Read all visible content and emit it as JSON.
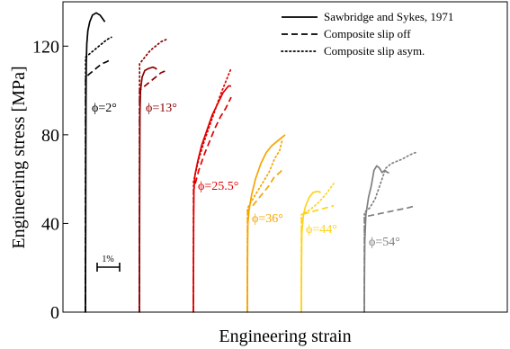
{
  "chart_data": {
    "type": "line",
    "title": "",
    "xlabel": "Engineering strain",
    "ylabel": "Engineering stress [MPa]",
    "ylim": [
      0,
      140
    ],
    "y_ticks": [
      0,
      40,
      80,
      120
    ],
    "x_tick_labels_shown": false,
    "x_units": "strain_percent_relative_to_each_curve_origin",
    "scale_bar_label": "1%",
    "grid": false,
    "legend_position": "top-right",
    "legend": [
      {
        "label": "Sawbridge and Sykes, 1971",
        "style": "solid"
      },
      {
        "label": "Composite slip off",
        "style": "dashed"
      },
      {
        "label": "Composite slip asym.",
        "style": "dotted"
      }
    ],
    "groups": [
      {
        "angle_label": "ϕ=2°",
        "color": "#000000",
        "experimental": [
          [
            0,
            0
          ],
          [
            0.05,
            40
          ],
          [
            0.07,
            70
          ],
          [
            0.1,
            95
          ],
          [
            0.15,
            112
          ],
          [
            0.25,
            121
          ],
          [
            0.45,
            127
          ],
          [
            0.8,
            131
          ],
          [
            1.3,
            134
          ],
          [
            2.0,
            135
          ],
          [
            2.7,
            134
          ],
          [
            3.3,
            132
          ],
          [
            3.6,
            131
          ]
        ],
        "slip_off": [
          [
            0,
            0
          ],
          [
            0.04,
            106
          ],
          [
            1.0,
            108
          ],
          [
            2.0,
            110
          ],
          [
            3.0,
            112
          ],
          [
            4.0,
            113
          ],
          [
            4.7,
            114
          ]
        ],
        "slip_asym": [
          [
            0,
            0
          ],
          [
            0.04,
            115
          ],
          [
            1.0,
            117
          ],
          [
            2.0,
            119
          ],
          [
            3.0,
            121
          ],
          [
            4.0,
            123
          ],
          [
            4.8,
            124
          ]
        ]
      },
      {
        "angle_label": "ϕ=13°",
        "color": "#8b0000",
        "experimental": [
          [
            0,
            0
          ],
          [
            0.05,
            60
          ],
          [
            0.1,
            90
          ],
          [
            0.2,
            100
          ],
          [
            0.5,
            106
          ],
          [
            1.0,
            109
          ],
          [
            1.8,
            110
          ],
          [
            2.5,
            110.5
          ],
          [
            3.0,
            110
          ],
          [
            3.2,
            109.5
          ]
        ],
        "slip_off": [
          [
            0,
            0
          ],
          [
            0.04,
            100
          ],
          [
            1.0,
            102
          ],
          [
            2.0,
            104
          ],
          [
            3.0,
            106
          ],
          [
            4.0,
            108
          ],
          [
            5.0,
            109
          ]
        ],
        "slip_asym": [
          [
            0,
            0
          ],
          [
            0.04,
            112
          ],
          [
            1.0,
            115
          ],
          [
            2.0,
            118
          ],
          [
            3.0,
            120
          ],
          [
            4.0,
            122
          ],
          [
            5.0,
            123
          ]
        ]
      },
      {
        "angle_label": "ϕ=25.5°",
        "color": "#e00000",
        "experimental": [
          [
            0,
            0
          ],
          [
            0.05,
            40
          ],
          [
            0.1,
            55
          ],
          [
            0.3,
            62
          ],
          [
            0.8,
            68
          ],
          [
            1.5,
            75
          ],
          [
            2.5,
            82
          ],
          [
            3.5,
            89
          ],
          [
            4.5,
            94
          ],
          [
            5.5,
            99
          ],
          [
            6.5,
            102
          ],
          [
            7.0,
            102
          ]
        ],
        "slip_off": [
          [
            0,
            0
          ],
          [
            0.04,
            55
          ],
          [
            1.0,
            64
          ],
          [
            2.0,
            71
          ],
          [
            3.0,
            77
          ],
          [
            4.0,
            83
          ],
          [
            5.0,
            88
          ],
          [
            6.0,
            92
          ],
          [
            7.0,
            97
          ]
        ],
        "slip_asym": [
          [
            0,
            0
          ],
          [
            0.04,
            59
          ],
          [
            1.0,
            69
          ],
          [
            2.0,
            77
          ],
          [
            3.0,
            84
          ],
          [
            4.0,
            91
          ],
          [
            5.0,
            98
          ],
          [
            6.0,
            104
          ],
          [
            7.0,
            110
          ]
        ]
      },
      {
        "angle_label": "ϕ=36°",
        "color": "#f5a500",
        "experimental": [
          [
            0,
            0
          ],
          [
            0.05,
            30
          ],
          [
            0.1,
            40
          ],
          [
            0.3,
            46
          ],
          [
            0.8,
            53
          ],
          [
            1.5,
            60
          ],
          [
            2.5,
            67
          ],
          [
            3.5,
            72
          ],
          [
            4.5,
            75
          ],
          [
            5.5,
            77
          ],
          [
            6.5,
            79
          ],
          [
            7.0,
            80
          ]
        ],
        "slip_off": [
          [
            0,
            0
          ],
          [
            0.04,
            46
          ],
          [
            1.0,
            48
          ],
          [
            2.0,
            51
          ],
          [
            3.0,
            54
          ],
          [
            4.0,
            57
          ],
          [
            5.0,
            61
          ],
          [
            6.0,
            63
          ],
          [
            6.4,
            64
          ]
        ],
        "slip_asym": [
          [
            0,
            0
          ],
          [
            0.04,
            47
          ],
          [
            1.0,
            51
          ],
          [
            2.0,
            55
          ],
          [
            3.0,
            59
          ],
          [
            4.0,
            63
          ],
          [
            5.0,
            69
          ],
          [
            6.0,
            73
          ],
          [
            6.4,
            77
          ]
        ]
      },
      {
        "angle_label": "ϕ=44°",
        "color": "#ffd21a",
        "experimental": [
          [
            0,
            0
          ],
          [
            0.05,
            25
          ],
          [
            0.1,
            36
          ],
          [
            0.4,
            44
          ],
          [
            0.8,
            48
          ],
          [
            1.5,
            52
          ],
          [
            2.2,
            54
          ],
          [
            3.0,
            54.5
          ],
          [
            3.6,
            54
          ]
        ],
        "slip_off": [
          [
            0,
            0
          ],
          [
            0.04,
            44
          ],
          [
            1.5,
            45
          ],
          [
            3.0,
            46
          ],
          [
            4.5,
            47
          ],
          [
            6.0,
            48
          ]
        ],
        "slip_asym": [
          [
            0,
            0
          ],
          [
            0.04,
            44
          ],
          [
            1.5,
            46
          ],
          [
            3.0,
            49
          ],
          [
            4.5,
            53
          ],
          [
            6.0,
            58
          ]
        ]
      },
      {
        "angle_label": "ϕ=54°",
        "color": "#7f7f7f",
        "experimental": [
          [
            0,
            0
          ],
          [
            0.05,
            20
          ],
          [
            0.1,
            32
          ],
          [
            0.3,
            44
          ],
          [
            0.8,
            52
          ],
          [
            1.3,
            57
          ],
          [
            1.8,
            64
          ],
          [
            2.3,
            66
          ],
          [
            2.8,
            65
          ],
          [
            3.3,
            63
          ],
          [
            3.8,
            64
          ],
          [
            4.3,
            63
          ],
          [
            4.6,
            63
          ]
        ],
        "slip_off": [
          [
            0,
            0
          ],
          [
            0.04,
            43
          ],
          [
            2.0,
            44
          ],
          [
            4.0,
            45
          ],
          [
            6.0,
            46
          ],
          [
            8.0,
            47
          ],
          [
            9.5,
            48
          ]
        ],
        "slip_asym": [
          [
            0,
            0
          ],
          [
            0.04,
            45
          ],
          [
            1.0,
            47
          ],
          [
            2.0,
            51
          ],
          [
            3.0,
            58
          ],
          [
            4.0,
            65
          ],
          [
            5.0,
            67
          ],
          [
            6.0,
            68
          ],
          [
            7.0,
            69
          ],
          [
            8.5,
            71
          ],
          [
            9.5,
            72
          ]
        ]
      }
    ]
  }
}
